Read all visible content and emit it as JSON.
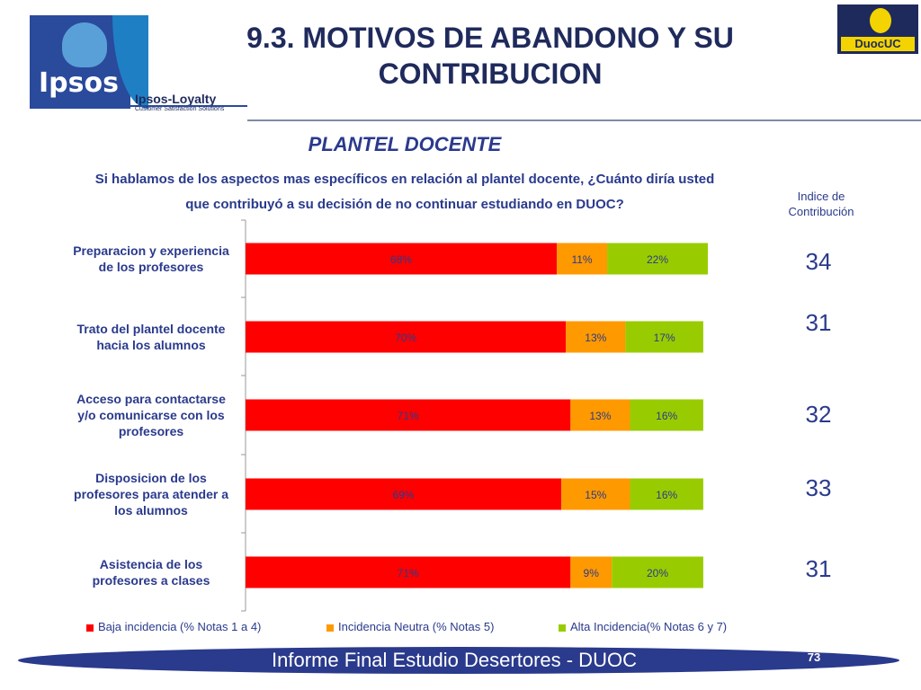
{
  "header": {
    "title_line1": "9.3. MOTIVOS DE ABANDONO Y SU",
    "title_line2": "CONTRIBUCION",
    "logo_left": "Ipsos",
    "logo_left_sub": "Ipsos-Loyalty",
    "logo_left_tagline": "Customer Satisfaction Solutions",
    "logo_right": "DuocUC"
  },
  "subtitle": "PLANTEL DOCENTE",
  "question_line1": "Si hablamos de los aspectos mas específicos en relación al plantel docente, ¿Cuánto diría usted",
  "question_line2": "que contribuyó a su decisión de no continuar estudiando en DUOC?",
  "indice_header": "Indice de Contribución",
  "indices": [
    "34",
    "31",
    "32",
    "33",
    "31"
  ],
  "colors": {
    "baja": "#ff0000",
    "neutra": "#ff9900",
    "alta": "#99cc00",
    "text": "#2a3a8c"
  },
  "chart_data": {
    "type": "bar",
    "orientation": "horizontal",
    "stacked": true,
    "categories": [
      "Preparacion y experiencia de los profesores",
      "Trato del plantel docente hacia los alumnos",
      "Acceso para contactarse y/o comunicarse con los profesores",
      "Disposicion de los profesores para atender a los alumnos",
      "Asistencia de los profesores a clases"
    ],
    "series": [
      {
        "name": "Baja incidencia (% Notas 1 a 4)",
        "values": [
          68,
          70,
          71,
          69,
          71
        ],
        "labels": [
          "68%",
          "70%",
          "71%",
          "69%",
          "71%"
        ]
      },
      {
        "name": "Incidencia Neutra (% Notas 5)",
        "values": [
          11,
          13,
          13,
          15,
          9
        ],
        "labels": [
          "11%",
          "13%",
          "13%",
          "15%",
          "9%"
        ]
      },
      {
        "name": "Alta Incidencia(% Notas 6 y 7)",
        "values": [
          22,
          17,
          16,
          16,
          20
        ],
        "labels": [
          "22%",
          "17%",
          "16%",
          "16%",
          "20%"
        ]
      }
    ],
    "xlim": [
      0,
      100
    ],
    "legend_position": "bottom"
  },
  "footer": {
    "text": "Informe Final Estudio Desertores - DUOC",
    "page": "73"
  }
}
